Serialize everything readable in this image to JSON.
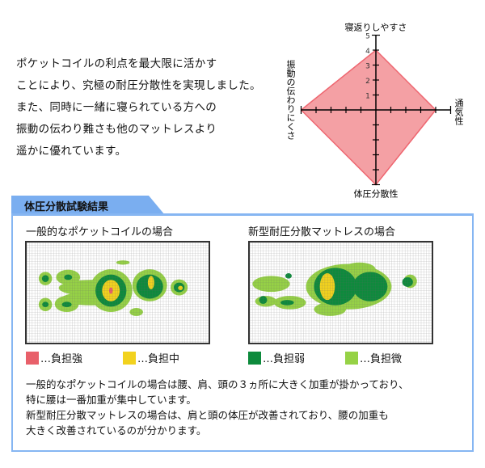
{
  "intro": [
    "ポケットコイルの利点を最大限に活かす",
    "ことにより、究極の耐圧分散性を実現しました。",
    "また、同時に一緒に寝られている方への",
    "振動の伝わり難さも他のマットレスより",
    "遥かに優れています。"
  ],
  "chart_data": {
    "type": "radar",
    "axes": [
      {
        "label": "寝返りしやすさ",
        "value": 4
      },
      {
        "label": "通気性",
        "value": 4
      },
      {
        "label": "体圧分散性",
        "value": 5
      },
      {
        "label": "振動の伝わりにくさ",
        "value": 5
      }
    ],
    "range": [
      0,
      5
    ],
    "tick_labels": [
      "1",
      "2",
      "3",
      "4",
      "5"
    ],
    "fill_color": "#f4a0a4",
    "line_color": "#ee6670"
  },
  "results": {
    "title": "体圧分散試験結果",
    "left_caption": "一般的なポケットコイルの場合",
    "right_caption": "新型耐圧分散マットレスの場合",
    "legend": [
      {
        "label": "…負担強",
        "color": "#e8606a"
      },
      {
        "label": "…負担中",
        "color": "#f2d21e"
      },
      {
        "label": "…負担弱",
        "color": "#0d8a3c"
      },
      {
        "label": "…負担微",
        "color": "#96d246"
      }
    ],
    "description": [
      "一般的なポケットコイルの場合は腰、肩、頭の３ヵ所に大きく加重が掛かっており、",
      "特に腰は一番加重が集中しています。",
      "新型耐圧分散マットレスの場合は、肩と頭の体圧が改善されており、腰の加重も",
      "大きく改善されているのが分かります。"
    ]
  }
}
